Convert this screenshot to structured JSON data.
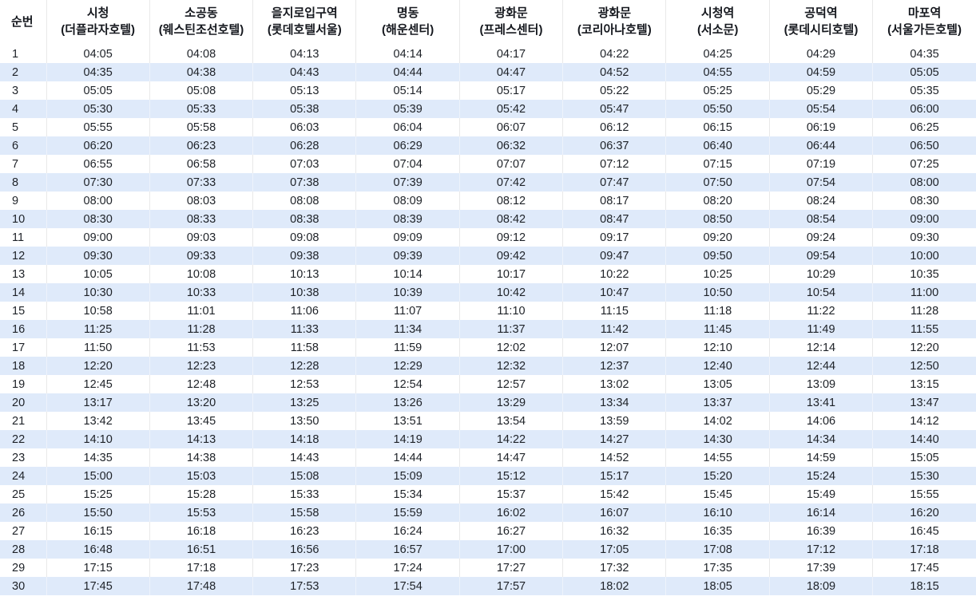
{
  "table": {
    "seq_header": "순번",
    "columns": [
      {
        "title": "시청",
        "subtitle": "(더플라자호텔)"
      },
      {
        "title": "소공동",
        "subtitle": "(웨스틴조선호텔)"
      },
      {
        "title": "을지로입구역",
        "subtitle": "(롯데호텔서울)"
      },
      {
        "title": "명동",
        "subtitle": "(해운센터)"
      },
      {
        "title": "광화문",
        "subtitle": "(프레스센터)"
      },
      {
        "title": "광화문",
        "subtitle": "(코리아나호텔)"
      },
      {
        "title": "시청역",
        "subtitle": "(서소문)"
      },
      {
        "title": "공덕역",
        "subtitle": "(롯데시티호텔)"
      },
      {
        "title": "마포역",
        "subtitle": "(서울가든호텔)"
      }
    ],
    "rows": [
      {
        "no": "1",
        "times": [
          "04:05",
          "04:08",
          "04:13",
          "04:14",
          "04:17",
          "04:22",
          "04:25",
          "04:29",
          "04:35"
        ]
      },
      {
        "no": "2",
        "times": [
          "04:35",
          "04:38",
          "04:43",
          "04:44",
          "04:47",
          "04:52",
          "04:55",
          "04:59",
          "05:05"
        ]
      },
      {
        "no": "3",
        "times": [
          "05:05",
          "05:08",
          "05:13",
          "05:14",
          "05:17",
          "05:22",
          "05:25",
          "05:29",
          "05:35"
        ]
      },
      {
        "no": "4",
        "times": [
          "05:30",
          "05:33",
          "05:38",
          "05:39",
          "05:42",
          "05:47",
          "05:50",
          "05:54",
          "06:00"
        ]
      },
      {
        "no": "5",
        "times": [
          "05:55",
          "05:58",
          "06:03",
          "06:04",
          "06:07",
          "06:12",
          "06:15",
          "06:19",
          "06:25"
        ]
      },
      {
        "no": "6",
        "times": [
          "06:20",
          "06:23",
          "06:28",
          "06:29",
          "06:32",
          "06:37",
          "06:40",
          "06:44",
          "06:50"
        ]
      },
      {
        "no": "7",
        "times": [
          "06:55",
          "06:58",
          "07:03",
          "07:04",
          "07:07",
          "07:12",
          "07:15",
          "07:19",
          "07:25"
        ]
      },
      {
        "no": "8",
        "times": [
          "07:30",
          "07:33",
          "07:38",
          "07:39",
          "07:42",
          "07:47",
          "07:50",
          "07:54",
          "08:00"
        ]
      },
      {
        "no": "9",
        "times": [
          "08:00",
          "08:03",
          "08:08",
          "08:09",
          "08:12",
          "08:17",
          "08:20",
          "08:24",
          "08:30"
        ]
      },
      {
        "no": "10",
        "times": [
          "08:30",
          "08:33",
          "08:38",
          "08:39",
          "08:42",
          "08:47",
          "08:50",
          "08:54",
          "09:00"
        ]
      },
      {
        "no": "11",
        "times": [
          "09:00",
          "09:03",
          "09:08",
          "09:09",
          "09:12",
          "09:17",
          "09:20",
          "09:24",
          "09:30"
        ]
      },
      {
        "no": "12",
        "times": [
          "09:30",
          "09:33",
          "09:38",
          "09:39",
          "09:42",
          "09:47",
          "09:50",
          "09:54",
          "10:00"
        ]
      },
      {
        "no": "13",
        "times": [
          "10:05",
          "10:08",
          "10:13",
          "10:14",
          "10:17",
          "10:22",
          "10:25",
          "10:29",
          "10:35"
        ]
      },
      {
        "no": "14",
        "times": [
          "10:30",
          "10:33",
          "10:38",
          "10:39",
          "10:42",
          "10:47",
          "10:50",
          "10:54",
          "11:00"
        ]
      },
      {
        "no": "15",
        "times": [
          "10:58",
          "11:01",
          "11:06",
          "11:07",
          "11:10",
          "11:15",
          "11:18",
          "11:22",
          "11:28"
        ]
      },
      {
        "no": "16",
        "times": [
          "11:25",
          "11:28",
          "11:33",
          "11:34",
          "11:37",
          "11:42",
          "11:45",
          "11:49",
          "11:55"
        ]
      },
      {
        "no": "17",
        "times": [
          "11:50",
          "11:53",
          "11:58",
          "11:59",
          "12:02",
          "12:07",
          "12:10",
          "12:14",
          "12:20"
        ]
      },
      {
        "no": "18",
        "times": [
          "12:20",
          "12:23",
          "12:28",
          "12:29",
          "12:32",
          "12:37",
          "12:40",
          "12:44",
          "12:50"
        ]
      },
      {
        "no": "19",
        "times": [
          "12:45",
          "12:48",
          "12:53",
          "12:54",
          "12:57",
          "13:02",
          "13:05",
          "13:09",
          "13:15"
        ]
      },
      {
        "no": "20",
        "times": [
          "13:17",
          "13:20",
          "13:25",
          "13:26",
          "13:29",
          "13:34",
          "13:37",
          "13:41",
          "13:47"
        ]
      },
      {
        "no": "21",
        "times": [
          "13:42",
          "13:45",
          "13:50",
          "13:51",
          "13:54",
          "13:59",
          "14:02",
          "14:06",
          "14:12"
        ]
      },
      {
        "no": "22",
        "times": [
          "14:10",
          "14:13",
          "14:18",
          "14:19",
          "14:22",
          "14:27",
          "14:30",
          "14:34",
          "14:40"
        ]
      },
      {
        "no": "23",
        "times": [
          "14:35",
          "14:38",
          "14:43",
          "14:44",
          "14:47",
          "14:52",
          "14:55",
          "14:59",
          "15:05"
        ]
      },
      {
        "no": "24",
        "times": [
          "15:00",
          "15:03",
          "15:08",
          "15:09",
          "15:12",
          "15:17",
          "15:20",
          "15:24",
          "15:30"
        ]
      },
      {
        "no": "25",
        "times": [
          "15:25",
          "15:28",
          "15:33",
          "15:34",
          "15:37",
          "15:42",
          "15:45",
          "15:49",
          "15:55"
        ]
      },
      {
        "no": "26",
        "times": [
          "15:50",
          "15:53",
          "15:58",
          "15:59",
          "16:02",
          "16:07",
          "16:10",
          "16:14",
          "16:20"
        ]
      },
      {
        "no": "27",
        "times": [
          "16:15",
          "16:18",
          "16:23",
          "16:24",
          "16:27",
          "16:32",
          "16:35",
          "16:39",
          "16:45"
        ]
      },
      {
        "no": "28",
        "times": [
          "16:48",
          "16:51",
          "16:56",
          "16:57",
          "17:00",
          "17:05",
          "17:08",
          "17:12",
          "17:18"
        ]
      },
      {
        "no": "29",
        "times": [
          "17:15",
          "17:18",
          "17:23",
          "17:24",
          "17:27",
          "17:32",
          "17:35",
          "17:39",
          "17:45"
        ]
      },
      {
        "no": "30",
        "times": [
          "17:45",
          "17:48",
          "17:53",
          "17:54",
          "17:57",
          "18:02",
          "18:05",
          "18:09",
          "18:15"
        ]
      }
    ],
    "stripe_color": "#dfeafa",
    "separator_color": "#e9e9e9",
    "text_color": "#1d2127"
  }
}
